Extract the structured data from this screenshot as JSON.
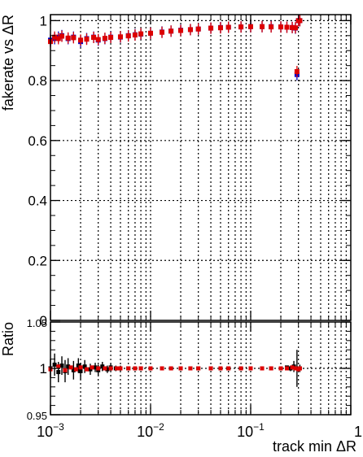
{
  "chart_data": [
    {
      "type": "scatter",
      "x_scale": "log",
      "xlim": [
        0.001,
        1
      ],
      "ylim": [
        0,
        1.02
      ],
      "ylabel": "fakerate vs ΔR",
      "xlabel": "",
      "grid": true,
      "y_ticks": [
        "0",
        "0.2",
        "0.4",
        "0.6",
        "0.8",
        "1"
      ],
      "series": [
        {
          "color": "#0000cc",
          "x": [
            0.001,
            0.0011,
            0.0012,
            0.0013,
            0.0015,
            0.0017,
            0.002,
            0.0023,
            0.0027,
            0.003,
            0.0035,
            0.004,
            0.005,
            0.006,
            0.007,
            0.008,
            0.01,
            0.013,
            0.016,
            0.02,
            0.025,
            0.03,
            0.04,
            0.05,
            0.06,
            0.08,
            0.1,
            0.13,
            0.16,
            0.2,
            0.23,
            0.26,
            0.28,
            0.29,
            0.3,
            0.31
          ],
          "y": [
            0.935,
            0.94,
            0.945,
            0.95,
            0.94,
            0.945,
            0.93,
            0.94,
            0.945,
            0.935,
            0.94,
            0.945,
            0.945,
            0.95,
            0.953,
            0.955,
            0.958,
            0.962,
            0.965,
            0.968,
            0.97,
            0.972,
            0.975,
            0.977,
            0.978,
            0.979,
            0.98,
            0.98,
            0.98,
            0.979,
            0.978,
            0.977,
            0.975,
            0.82,
            1.0,
            1.0
          ]
        },
        {
          "color": "#dd0000",
          "x": [
            0.001,
            0.0011,
            0.0012,
            0.0013,
            0.0015,
            0.0017,
            0.002,
            0.0023,
            0.0027,
            0.003,
            0.0035,
            0.004,
            0.005,
            0.006,
            0.007,
            0.008,
            0.01,
            0.013,
            0.016,
            0.02,
            0.025,
            0.03,
            0.04,
            0.05,
            0.06,
            0.08,
            0.1,
            0.13,
            0.16,
            0.2,
            0.23,
            0.26,
            0.28,
            0.29,
            0.3,
            0.31
          ],
          "y": [
            0.93,
            0.945,
            0.94,
            0.948,
            0.942,
            0.943,
            0.935,
            0.938,
            0.944,
            0.937,
            0.941,
            0.944,
            0.946,
            0.949,
            0.952,
            0.956,
            0.958,
            0.961,
            0.965,
            0.967,
            0.97,
            0.972,
            0.975,
            0.976,
            0.978,
            0.979,
            0.98,
            0.98,
            0.979,
            0.979,
            0.978,
            0.977,
            0.976,
            0.83,
            1.0,
            1.0
          ]
        }
      ]
    },
    {
      "type": "scatter",
      "x_scale": "log",
      "xlim": [
        0.001,
        1
      ],
      "ylim": [
        0.95,
        1.05
      ],
      "ylabel": "Ratio",
      "xlabel": "track min ΔR",
      "grid": true,
      "y_ticks": [
        "0.95",
        "1",
        "1.05"
      ],
      "x_ticks": [
        {
          "base": "10",
          "exp": "−3"
        },
        {
          "base": "10",
          "exp": "−2"
        },
        {
          "base": "10",
          "exp": "−1"
        },
        {
          "base": "1",
          "exp": ""
        }
      ],
      "series": [
        {
          "color": "#000000",
          "x": [
            0.001,
            0.0011,
            0.0012,
            0.0013,
            0.0014,
            0.0015,
            0.0017,
            0.0019,
            0.002,
            0.0022,
            0.0025,
            0.0028,
            0.003,
            0.0033,
            0.0037,
            0.004,
            0.0045,
            0.005,
            0.006,
            0.007,
            0.008,
            0.01,
            0.013,
            0.016,
            0.02,
            0.025,
            0.03,
            0.04,
            0.05,
            0.06,
            0.08,
            0.1,
            0.13,
            0.16,
            0.2,
            0.23,
            0.25,
            0.27,
            0.29,
            0.31
          ],
          "y": [
            1.0,
            1.004,
            0.996,
            1.003,
            0.997,
            1.002,
            0.998,
            1.003,
            0.997,
            1.002,
            0.999,
            1.001,
            0.998,
            1.002,
            0.999,
            1.001,
            1.0,
            1.0,
            1.0,
            1.0,
            1.0,
            1.0,
            1.0,
            1.0,
            1.0,
            1.0,
            1.0,
            1.0,
            1.0,
            1.0,
            1.0,
            1.0,
            1.0,
            1.0,
            1.0,
            1.001,
            1.0,
            1.002,
            1.0,
            1.0
          ],
          "err": [
            0.01,
            0.012,
            0.011,
            0.01,
            0.012,
            0.009,
            0.01,
            0.008,
            0.009,
            0.007,
            0.006,
            0.005,
            0.006,
            0.005,
            0.004,
            0.004,
            0.003,
            0.003,
            0.002,
            0.002,
            0.002,
            0.001,
            0.001,
            0.001,
            0.001,
            0.001,
            0.001,
            0.001,
            0.001,
            0.001,
            0.001,
            0.001,
            0.001,
            0.001,
            0.001,
            0.002,
            0.003,
            0.006,
            0.02,
            0.004
          ]
        },
        {
          "color": "#dd0000",
          "x": [
            0.001,
            0.0012,
            0.0014,
            0.0016,
            0.0018,
            0.002,
            0.0023,
            0.0026,
            0.003,
            0.0035,
            0.004,
            0.0046,
            0.005,
            0.006,
            0.007,
            0.008,
            0.01,
            0.013,
            0.016,
            0.02,
            0.025,
            0.03,
            0.04,
            0.05,
            0.06,
            0.08,
            0.1,
            0.13,
            0.16,
            0.2,
            0.23,
            0.26,
            0.28,
            0.3,
            0.31
          ],
          "y": [
            0.999,
            1.002,
            0.998,
            1.001,
            0.999,
            1.001,
            0.999,
            1.001,
            1.0,
            1.0,
            1.0,
            1.0,
            1.0,
            1.0,
            1.0,
            1.0,
            1.0,
            1.0,
            1.0,
            1.0,
            1.0,
            1.0,
            1.0,
            1.0,
            1.0,
            1.0,
            1.0,
            1.0,
            1.0,
            1.0,
            1.0,
            1.001,
            1.0,
            0.999,
            1.0
          ]
        }
      ]
    }
  ]
}
